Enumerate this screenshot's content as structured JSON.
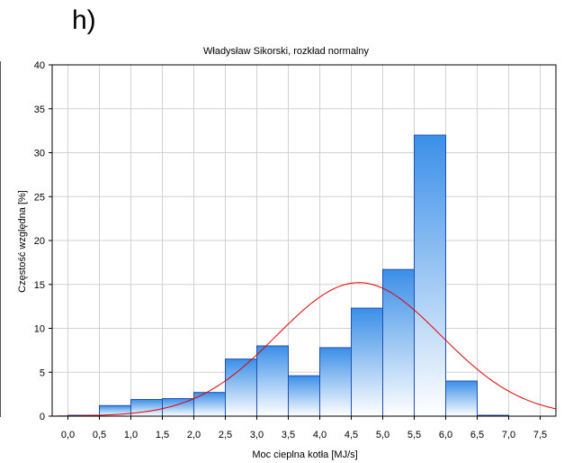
{
  "panel_label": "h)",
  "chart_data": {
    "type": "bar",
    "title": "Władysław Sikorski, rozkład normalny",
    "xlabel": "Moc cieplna kotła [MJ/s]",
    "ylabel": "Częstość względna [%]",
    "xlim": [
      -0.25,
      7.75
    ],
    "ylim": [
      0,
      40
    ],
    "xticks": [
      "0,0",
      "0,5",
      "1,0",
      "1,5",
      "2,0",
      "2,5",
      "3,0",
      "3,5",
      "4,0",
      "4,5",
      "5,0",
      "5,5",
      "6,0",
      "6,5",
      "7,0",
      "7,5"
    ],
    "yticks": [
      "0",
      "5",
      "10",
      "15",
      "20",
      "25",
      "30",
      "35",
      "40"
    ],
    "bin_width": 0.5,
    "bins": [
      {
        "x0": 0.0,
        "value": 0.1
      },
      {
        "x0": 0.5,
        "value": 1.2
      },
      {
        "x0": 1.0,
        "value": 1.9
      },
      {
        "x0": 1.5,
        "value": 2.0
      },
      {
        "x0": 2.0,
        "value": 2.7
      },
      {
        "x0": 2.5,
        "value": 6.5
      },
      {
        "x0": 3.0,
        "value": 8.0
      },
      {
        "x0": 3.5,
        "value": 4.6
      },
      {
        "x0": 4.0,
        "value": 7.8
      },
      {
        "x0": 4.5,
        "value": 12.3
      },
      {
        "x0": 5.0,
        "value": 16.7
      },
      {
        "x0": 5.5,
        "value": 32.0
      },
      {
        "x0": 6.0,
        "value": 4.0
      },
      {
        "x0": 6.5,
        "value": 0.1
      }
    ],
    "normal_curve": {
      "mean": 4.62,
      "sd": 1.3,
      "peak": 15.2,
      "color": "#e00000"
    },
    "grid": true,
    "bar_gradient": [
      "#ffffff",
      "#3a8fe8"
    ],
    "bar_edge": "#1f4fb0"
  }
}
